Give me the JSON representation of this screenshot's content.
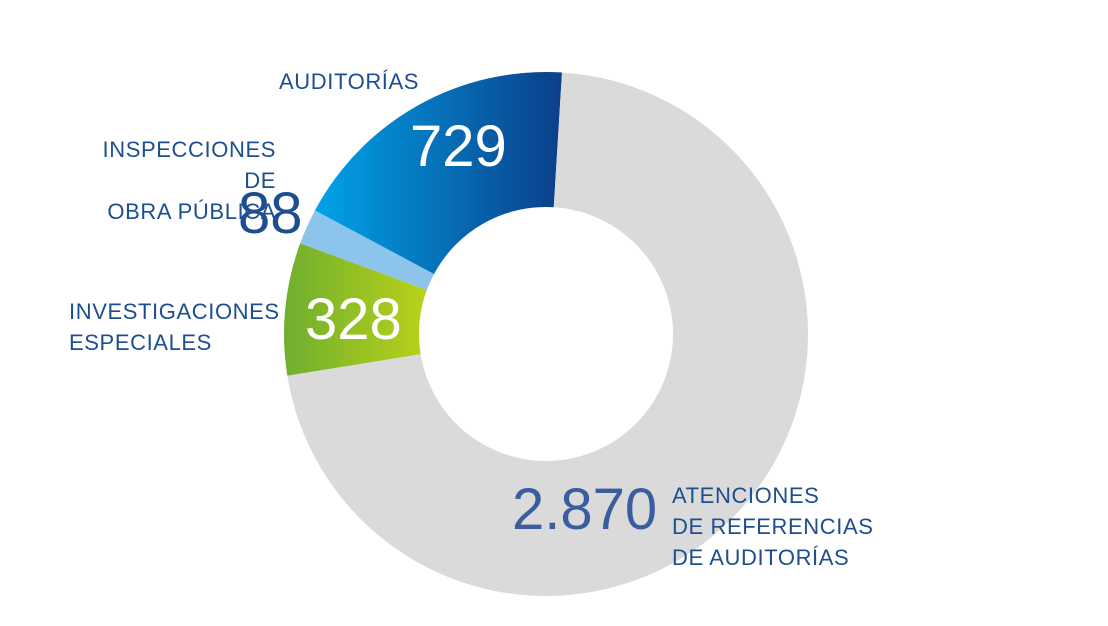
{
  "chart_data": {
    "type": "pie",
    "style": "donut",
    "title": "",
    "categories": [
      "AUDITORÍAS",
      "INSPECCIONES DE\nOBRA PÚBLICA",
      "INVESTIGACIONES\nESPECIALES",
      "ATENCIONES\nDE REFERENCIAS\nDE AUDITORÍAS"
    ],
    "values": [
      729,
      88,
      328,
      2870
    ],
    "value_labels": [
      "729",
      "88",
      "328",
      "2.870"
    ],
    "colors": [
      "#00a0e6",
      "#8cc4ec",
      "#8cbf2a",
      "#dadada"
    ],
    "gradient_colors": [
      [
        "#00a3e8",
        "#0a3f8a"
      ],
      [
        "#8cc4ec",
        "#8cc4ec"
      ],
      [
        "#6fae2e",
        "#b8d21a"
      ],
      [
        "#dadada",
        "#dadada"
      ]
    ],
    "value_label_colors": [
      "#ffffff",
      "#1d4e8f",
      "#ffffff",
      "#3a5d9e"
    ],
    "category_label_color": "#1d4e8f"
  }
}
